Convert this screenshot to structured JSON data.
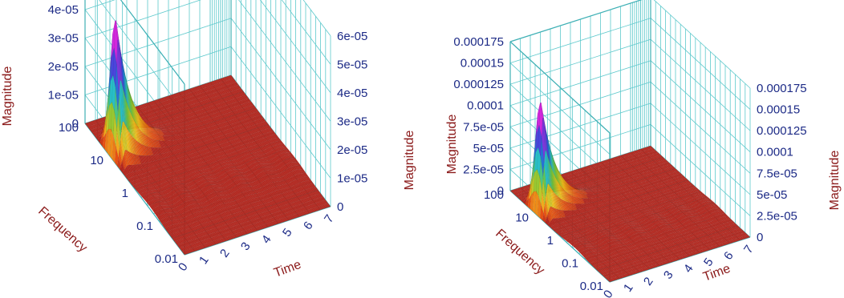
{
  "chart_data": [
    {
      "type": "surface3d",
      "xlabel": "Time",
      "ylabel": "Frequency",
      "zlabel": "Magnitude",
      "x_ticks": [
        "0",
        "1",
        "2",
        "3",
        "4",
        "5",
        "6",
        "7"
      ],
      "y_ticks": [
        "0.01",
        "0.1",
        "1",
        "10",
        "100"
      ],
      "y_scale": "log",
      "z_ticks": [
        "0",
        "1e-05",
        "2e-05",
        "3e-05",
        "4e-05",
        "5e-05",
        "6e-05"
      ],
      "zlim": [
        0,
        6e-05
      ],
      "peak": {
        "time": 0.5,
        "frequency": 10,
        "magnitude": 4.7e-05
      },
      "colors": {
        "grid": "#5ec9cc",
        "surface_base": "#b5251c",
        "tick": "#1c2a86",
        "title": "#8b1a1a"
      }
    },
    {
      "type": "surface3d",
      "xlabel": "Time",
      "ylabel": "Frequency",
      "zlabel": "Magnitude",
      "x_ticks": [
        "0",
        "1",
        "2",
        "3",
        "4",
        "5",
        "6",
        "7"
      ],
      "y_ticks": [
        "0.01",
        "0.1",
        "1",
        "10",
        "100"
      ],
      "y_scale": "log",
      "z_ticks": [
        "0",
        "2.5e-05",
        "5e-05",
        "7.5e-05",
        "0.0001",
        "0.000125",
        "0.00015",
        "0.000175"
      ],
      "zlim": [
        0,
        0.000175
      ],
      "peak": {
        "time": 0.5,
        "frequency": 10,
        "magnitude": 0.000128
      },
      "colors": {
        "grid": "#5ec9cc",
        "surface_base": "#b5251c",
        "tick": "#1c2a86",
        "title": "#8b1a1a"
      }
    }
  ]
}
